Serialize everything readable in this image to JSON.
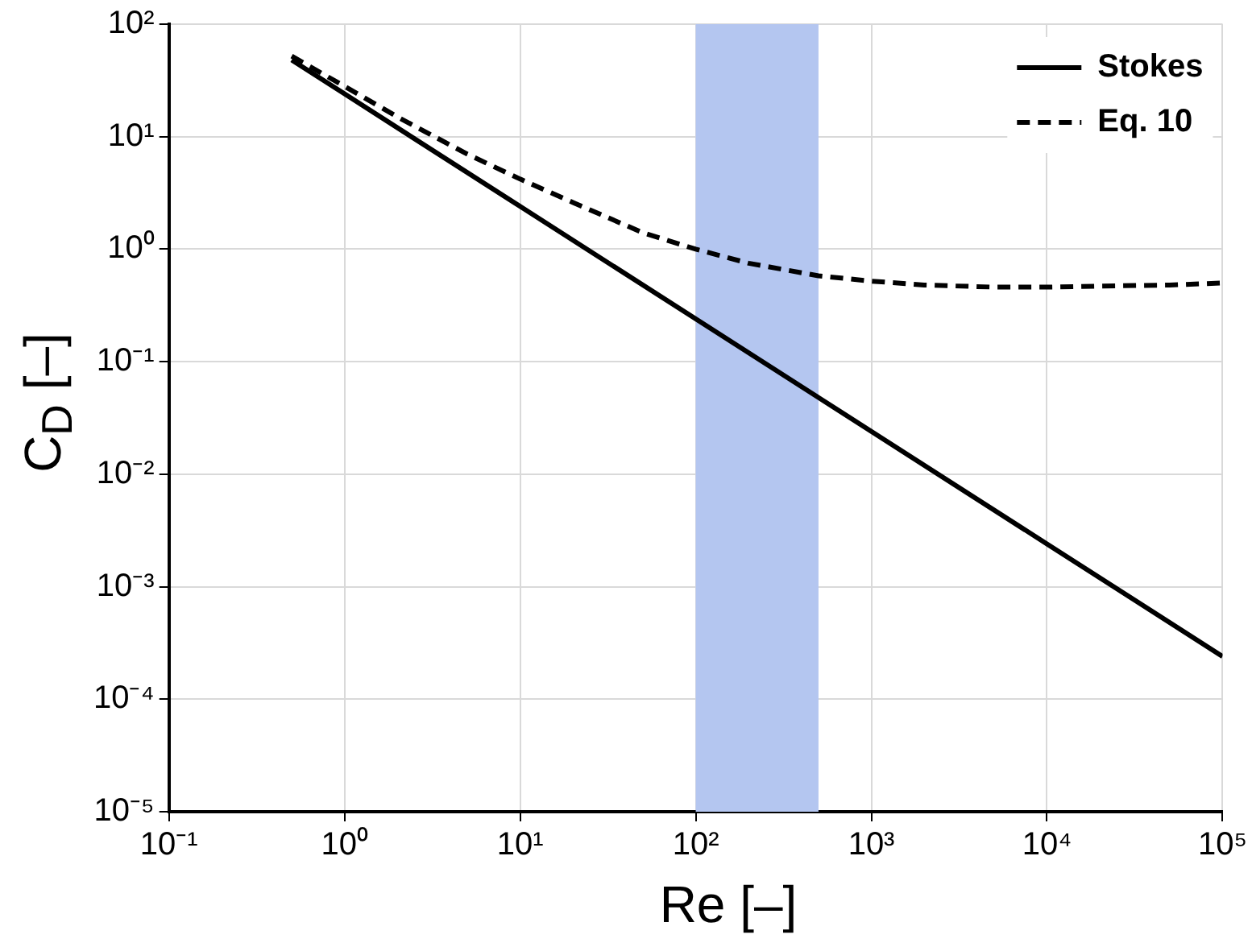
{
  "chart_data": {
    "type": "line",
    "xlabel": "Re [–]",
    "ylabel": "C$_{D}$ [–]",
    "log": "xy",
    "grid": true,
    "legend": "top right",
    "marker": "none",
    "xlim": [
      0.1,
      100000
    ],
    "xticks": [
      {
        "value": 0.1,
        "label": "10⁻¹"
      },
      {
        "value": 1,
        "label": "10⁰"
      },
      {
        "value": 10,
        "label": "10¹"
      },
      {
        "value": 100,
        "label": "10²"
      },
      {
        "value": 1000,
        "label": "10³"
      },
      {
        "value": 10000,
        "label": "10⁴"
      },
      {
        "value": 100000,
        "label": "10⁵"
      }
    ],
    "ylim": [
      1e-05,
      100
    ],
    "yticks": [
      {
        "value": 1e-05,
        "label": "10⁻⁵"
      },
      {
        "value": 0.0001,
        "label": "10⁻⁴"
      },
      {
        "value": 0.001,
        "label": "10⁻³"
      },
      {
        "value": 0.01,
        "label": "10⁻²"
      },
      {
        "value": 0.1,
        "label": "10⁻¹"
      },
      {
        "value": 1,
        "label": "10⁰"
      },
      {
        "value": 10,
        "label": "10¹"
      },
      {
        "value": 100,
        "label": "10²"
      }
    ],
    "bands": [
      {
        "axis": "x",
        "from": 100,
        "to": 500,
        "color": "#b4c6f0"
      }
    ],
    "series": [
      {
        "name": "Stokes",
        "color": "#000000",
        "line_style": "solid",
        "x": [
          0.5,
          1,
          10,
          100,
          1000,
          10000,
          100000
        ],
        "values": [
          48,
          24,
          2.4,
          0.24,
          0.024,
          0.0024,
          0.00024
        ]
      },
      {
        "name": "Eq. 10",
        "color": "#000000",
        "line_style": "dashed",
        "x": [
          0.5,
          1,
          2,
          5,
          10,
          20,
          50,
          100,
          200,
          500,
          1000,
          2000,
          5000,
          10000,
          20000,
          50000,
          100000
        ],
        "values": [
          52,
          28,
          15,
          7,
          4.2,
          2.6,
          1.4,
          1.0,
          0.75,
          0.58,
          0.52,
          0.48,
          0.46,
          0.46,
          0.47,
          0.48,
          0.5
        ]
      }
    ]
  }
}
